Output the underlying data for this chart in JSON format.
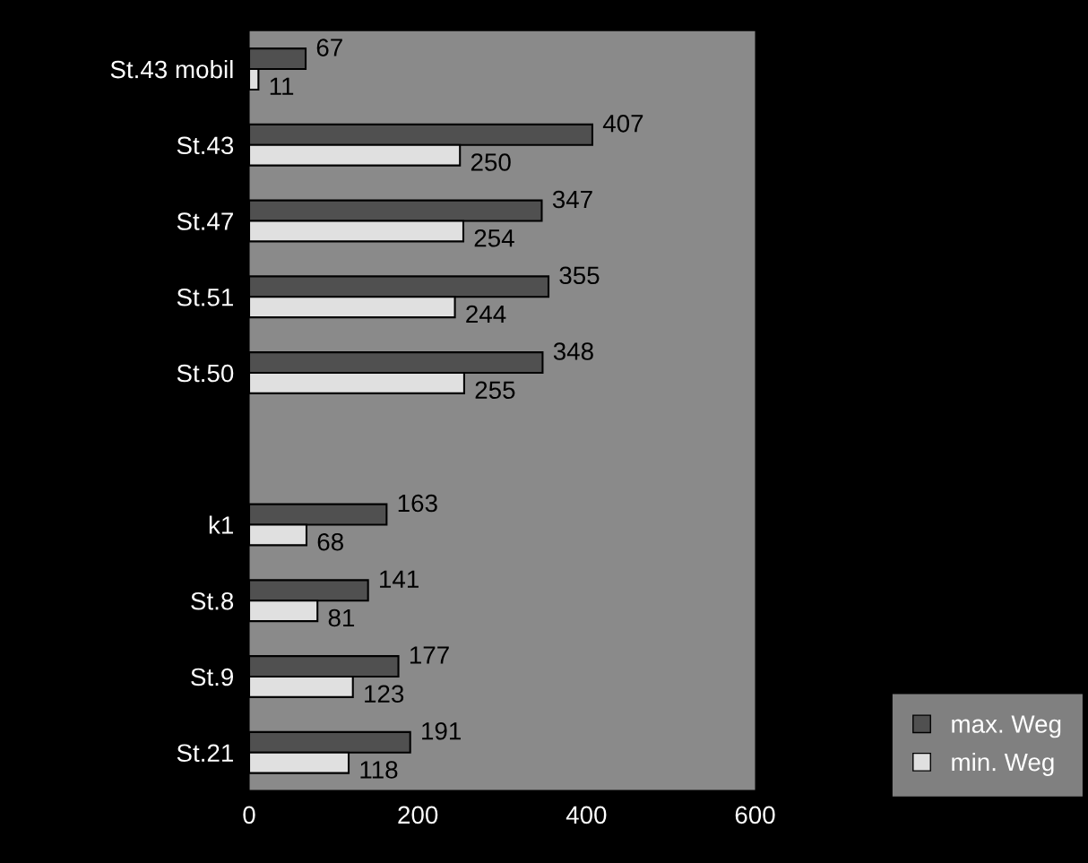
{
  "chart_data": {
    "type": "bar",
    "orientation": "horizontal",
    "categories": [
      "St.43 mobil",
      "St.43",
      "St.47",
      "St.51",
      "St.50",
      null,
      "k1",
      "St.8",
      "St.9",
      "St.21"
    ],
    "series": [
      {
        "name": "max. Weg",
        "color": "#505050",
        "values": [
          67,
          407,
          347,
          355,
          348,
          null,
          163,
          141,
          177,
          191
        ]
      },
      {
        "name": "min. Weg",
        "color": "#e0e0e0",
        "values": [
          11,
          250,
          254,
          244,
          255,
          null,
          68,
          81,
          123,
          118
        ]
      }
    ],
    "xlim": [
      0,
      600
    ],
    "xticks": [
      0,
      200,
      400,
      600
    ],
    "data_labels": true,
    "grid": false,
    "legend": "bottom right"
  }
}
